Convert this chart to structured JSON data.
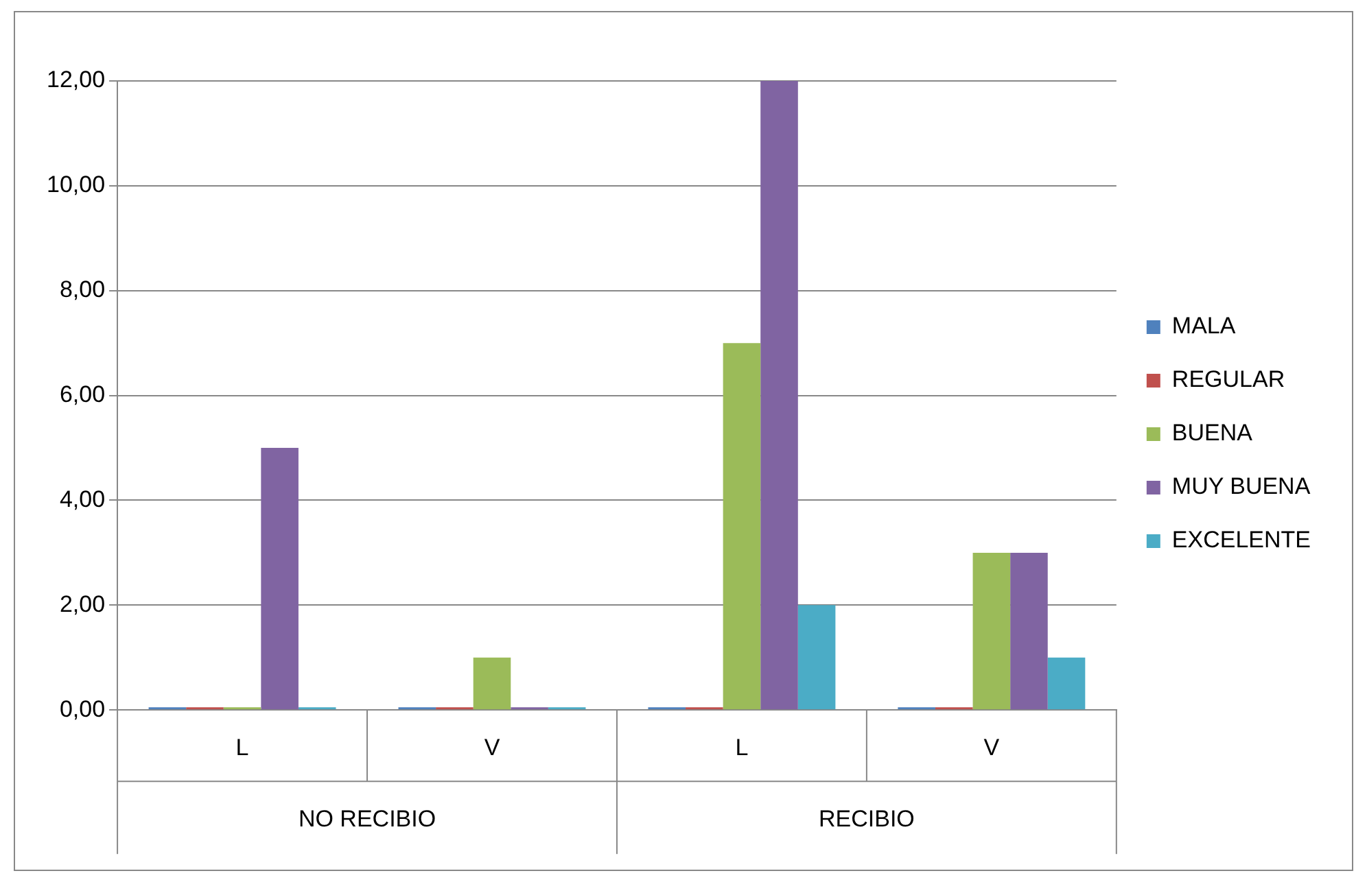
{
  "chart_data": {
    "type": "bar",
    "categories": [
      "L",
      "V",
      "L",
      "V"
    ],
    "series": [
      {
        "name": "MALA",
        "color": "#4f81bd",
        "values": [
          0,
          0,
          0,
          0
        ]
      },
      {
        "name": "REGULAR",
        "color": "#c0504d",
        "values": [
          0,
          0,
          0,
          0
        ]
      },
      {
        "name": "BUENA",
        "color": "#9bbb59",
        "values": [
          0,
          1,
          7,
          3
        ]
      },
      {
        "name": "MUY BUENA",
        "color": "#8064a2",
        "values": [
          5,
          0,
          12,
          3
        ]
      },
      {
        "name": "EXCELENTE",
        "color": "#4bacc6",
        "values": [
          0,
          0,
          2,
          1
        ]
      }
    ],
    "ylim": [
      0,
      12
    ],
    "yticks": [
      {
        "value": 0,
        "label": "0,00"
      },
      {
        "value": 2,
        "label": "2,00"
      },
      {
        "value": 4,
        "label": "4,00"
      },
      {
        "value": 6,
        "label": "6,00"
      },
      {
        "value": 8,
        "label": "8,00"
      },
      {
        "value": 10,
        "label": "10,00"
      },
      {
        "value": 12,
        "label": "12,00"
      }
    ],
    "annotations": [
      "NO RECIBIO",
      "RECIBIO"
    ],
    "grid": "y",
    "legend": "right"
  }
}
